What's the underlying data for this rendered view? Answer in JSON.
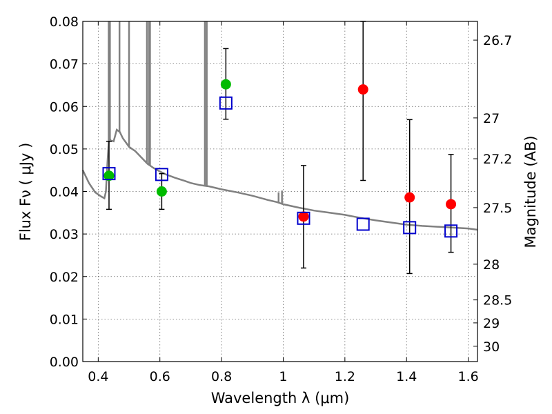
{
  "chart_data": {
    "type": "scatter",
    "xlabel": "Wavelength  λ (μm)",
    "ylabel": "Flux  Fν  ( μJy )",
    "y2label": "Magnitude (AB)",
    "xlim": [
      0.35,
      1.63
    ],
    "ylim": [
      0.0,
      0.08
    ],
    "x_ticks": [
      0.4,
      0.6,
      0.8,
      1.0,
      1.2,
      1.4,
      1.6
    ],
    "x_tick_labels": [
      "0.4",
      "0.6",
      "0.8",
      "1",
      "1.2",
      "1.4",
      "1.6"
    ],
    "y_ticks": [
      0.0,
      0.01,
      0.02,
      0.03,
      0.04,
      0.05,
      0.06,
      0.07,
      0.08
    ],
    "y_tick_labels": [
      "0.00",
      "0.01",
      "0.02",
      "0.03",
      "0.04",
      "0.05",
      "0.06",
      "0.07",
      "0.08"
    ],
    "y2_ticks": [
      {
        "label": "26.7",
        "flux": 0.0756
      },
      {
        "label": "27",
        "flux": 0.0573
      },
      {
        "label": "27.2",
        "flux": 0.0477
      },
      {
        "label": "27.5",
        "flux": 0.0362
      },
      {
        "label": "28",
        "flux": 0.0229
      },
      {
        "label": "28.5",
        "flux": 0.0145
      },
      {
        "label": "29",
        "flux": 0.0091
      },
      {
        "label": "30",
        "flux": 0.0036
      }
    ],
    "grid": true,
    "colors": {
      "green": "#00bb00",
      "red": "#ff0000",
      "model_square": "#0000cc",
      "spectrum": "#808080",
      "errorbar": "#000000"
    },
    "observed": [
      {
        "x": 0.435,
        "y": 0.0437,
        "yerr_low": 0.0079,
        "yerr_high": 0.0081,
        "color": "green"
      },
      {
        "x": 0.606,
        "y": 0.04,
        "yerr_low": 0.0042,
        "yerr_high": 0.0042,
        "color": "green"
      },
      {
        "x": 0.814,
        "y": 0.0652,
        "yerr_low": 0.0082,
        "yerr_high": 0.0084,
        "color": "green"
      },
      {
        "x": 1.066,
        "y": 0.0341,
        "yerr_low": 0.0121,
        "yerr_high": 0.012,
        "color": "red"
      },
      {
        "x": 1.259,
        "y": 0.064,
        "yerr_low": 0.0214,
        "yerr_high": 0.016,
        "color": "red"
      },
      {
        "x": 1.41,
        "y": 0.0386,
        "yerr_low": 0.0179,
        "yerr_high": 0.0183,
        "color": "red"
      },
      {
        "x": 1.544,
        "y": 0.037,
        "yerr_low": 0.0113,
        "yerr_high": 0.0117,
        "color": "red"
      }
    ],
    "model_points": [
      {
        "x": 0.435,
        "y": 0.0442
      },
      {
        "x": 0.606,
        "y": 0.044
      },
      {
        "x": 0.814,
        "y": 0.0608
      },
      {
        "x": 1.066,
        "y": 0.0337
      },
      {
        "x": 1.259,
        "y": 0.0323
      },
      {
        "x": 1.41,
        "y": 0.0315
      },
      {
        "x": 1.544,
        "y": 0.0307
      }
    ],
    "spectrum": [
      [
        0.35,
        0.045
      ],
      [
        0.37,
        0.042
      ],
      [
        0.39,
        0.0398
      ],
      [
        0.41,
        0.0388
      ],
      [
        0.42,
        0.0384
      ],
      [
        0.425,
        0.04
      ],
      [
        0.43,
        0.047
      ],
      [
        0.435,
        0.053
      ],
      [
        0.44,
        0.052
      ],
      [
        0.45,
        0.0518
      ],
      [
        0.46,
        0.0545
      ],
      [
        0.47,
        0.054
      ],
      [
        0.48,
        0.0525
      ],
      [
        0.49,
        0.0515
      ],
      [
        0.5,
        0.0505
      ],
      [
        0.52,
        0.0495
      ],
      [
        0.54,
        0.048
      ],
      [
        0.56,
        0.0465
      ],
      [
        0.58,
        0.0455
      ],
      [
        0.6,
        0.0447
      ],
      [
        0.62,
        0.044
      ],
      [
        0.65,
        0.0432
      ],
      [
        0.68,
        0.0425
      ],
      [
        0.7,
        0.042
      ],
      [
        0.73,
        0.0415
      ],
      [
        0.76,
        0.0412
      ],
      [
        0.8,
        0.0405
      ],
      [
        0.85,
        0.0398
      ],
      [
        0.9,
        0.039
      ],
      [
        0.95,
        0.038
      ],
      [
        0.98,
        0.0375
      ],
      [
        1.0,
        0.037
      ],
      [
        1.05,
        0.0362
      ],
      [
        1.1,
        0.0355
      ],
      [
        1.15,
        0.035
      ],
      [
        1.2,
        0.0345
      ],
      [
        1.25,
        0.0338
      ],
      [
        1.3,
        0.0332
      ],
      [
        1.35,
        0.0327
      ],
      [
        1.4,
        0.0322
      ],
      [
        1.45,
        0.0319
      ],
      [
        1.5,
        0.0317
      ],
      [
        1.55,
        0.0315
      ],
      [
        1.6,
        0.0313
      ],
      [
        1.63,
        0.031
      ]
    ],
    "spectrum_lines": [
      {
        "x": 0.434,
        "y_top": 0.08
      },
      {
        "x": 0.438,
        "y_top": 0.08
      },
      {
        "x": 0.469,
        "y_top": 0.08
      },
      {
        "x": 0.5,
        "y_top": 0.08
      },
      {
        "x": 0.558,
        "y_top": 0.08
      },
      {
        "x": 0.565,
        "y_top": 0.08
      },
      {
        "x": 0.568,
        "y_top": 0.08
      },
      {
        "x": 0.746,
        "y_top": 0.08
      },
      {
        "x": 0.752,
        "y_top": 0.08
      },
      {
        "x": 0.985,
        "y_top": 0.0398
      },
      {
        "x": 0.996,
        "y_top": 0.0402
      }
    ]
  }
}
